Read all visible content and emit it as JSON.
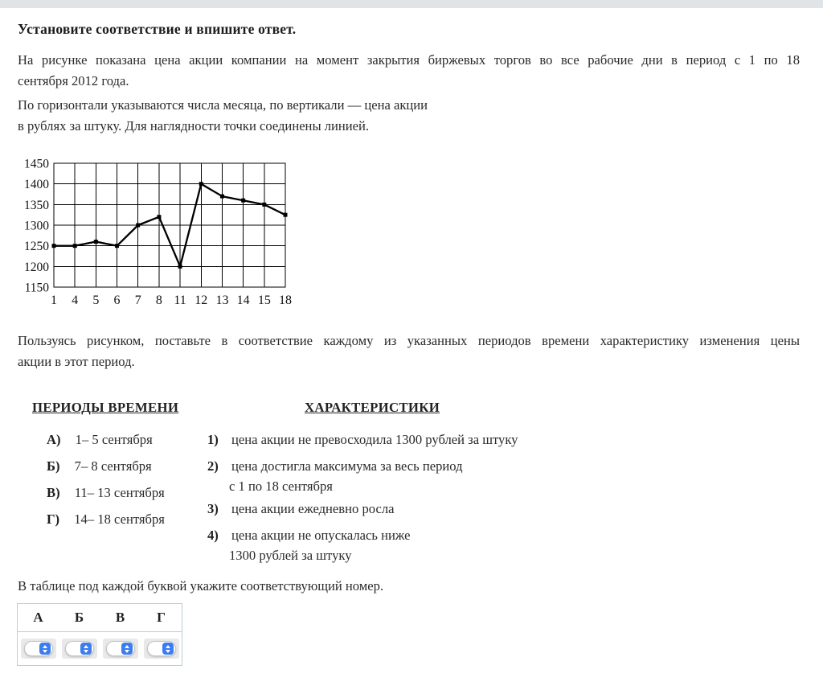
{
  "title": "Установите соответствие и впишите ответ.",
  "intro": {
    "line1": "На рисунке показана цена акции компании на момент закрытия биржевых торгов во все рабочие дни в период с 1 по 18",
    "line2": "сентября 2012 года.",
    "line3": "По горизонтали указываются числа месяца, по вертикали —  цена акции",
    "line4": "в рублях за штуку. Для наглядности точки соединены линией."
  },
  "chart_data": {
    "type": "line",
    "categories": [
      "1",
      "4",
      "5",
      "6",
      "7",
      "8",
      "11",
      "12",
      "13",
      "14",
      "15",
      "18"
    ],
    "values": [
      1250,
      1250,
      1260,
      1250,
      1300,
      1320,
      1200,
      1400,
      1370,
      1360,
      1350,
      1325
    ],
    "title": "",
    "xlabel": "",
    "ylabel": "",
    "ylim": [
      1150,
      1450
    ],
    "ytick_step": 50,
    "grid": true,
    "legend": false,
    "line_color": "#000000"
  },
  "instruction": {
    "line1": "Пользуясь рисунком, поставьте в соответствие каждому из указанных периодов времени характеристику изменения цены",
    "line2": "акции в этот период."
  },
  "match": {
    "periods_header": "ПЕРИОДЫ ВРЕМЕНИ",
    "characteristics_header": "ХАРАКТЕРИСТИКИ",
    "periods": [
      {
        "key": "А)",
        "label": "1– 5 сентября"
      },
      {
        "key": "Б)",
        "label": "7– 8 сентября"
      },
      {
        "key": "В)",
        "label": "11– 13 сентября"
      },
      {
        "key": "Г)",
        "label": "14– 18 сентября"
      }
    ],
    "characteristics": [
      {
        "num": "1)",
        "line1": "цена акции не превосходила 1300 рублей за штуку",
        "line2": ""
      },
      {
        "num": "2)",
        "line1": "цена достигла максимума за весь период",
        "line2": "с 1 по 18 сентября"
      },
      {
        "num": "3)",
        "line1": "цена акции ежедневно росла",
        "line2": ""
      },
      {
        "num": "4)",
        "line1": "цена акции не опускалась ниже",
        "line2": "1300 рублей за штуку"
      }
    ]
  },
  "answer": {
    "prompt": "В таблице под каждой буквой укажите соответствующий номер.",
    "columns": [
      "А",
      "Б",
      "В",
      "Г"
    ],
    "selected": [
      "",
      "",
      "",
      ""
    ]
  },
  "colors": {
    "top_strip": "#e0e4e6",
    "table_border": "#b9cfd6",
    "select_blue": "#3b7cf0",
    "select_field_bg": "#e9e9e9"
  }
}
